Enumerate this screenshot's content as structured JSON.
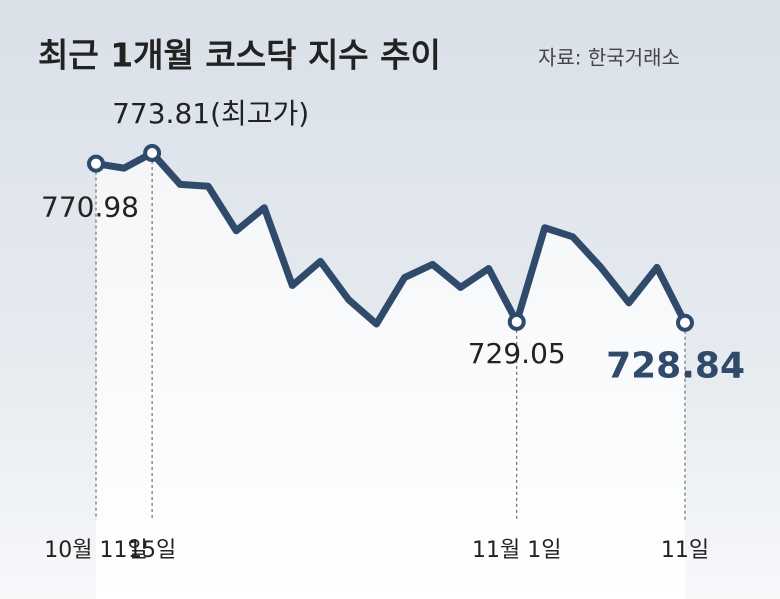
{
  "chart_data": {
    "type": "line",
    "title": "최근 1개월 코스닥 지수 추이",
    "source": "자료: 한국거래소",
    "categories": [
      "10월 11일",
      null,
      "15일",
      null,
      null,
      null,
      null,
      null,
      null,
      null,
      null,
      null,
      null,
      null,
      null,
      "11월 1일",
      null,
      null,
      null,
      null,
      null,
      "11일"
    ],
    "series": [
      {
        "color": "#2f4a6b",
        "values": [
          770.98,
          769.8,
          773.81,
          765.5,
          765.0,
          753.2,
          759.3,
          738.7,
          745.1,
          735.0,
          728.5,
          740.8,
          744.3,
          738.2,
          743.2,
          729.05,
          754.0,
          751.6,
          743.5,
          734.1,
          743.5,
          728.84
        ],
        "value_labels": [
          "770.98",
          null,
          "773.81(최고가)",
          null,
          null,
          null,
          null,
          null,
          null,
          null,
          null,
          null,
          null,
          null,
          null,
          "729.05",
          null,
          null,
          null,
          null,
          null,
          "728.84"
        ]
      }
    ]
  }
}
